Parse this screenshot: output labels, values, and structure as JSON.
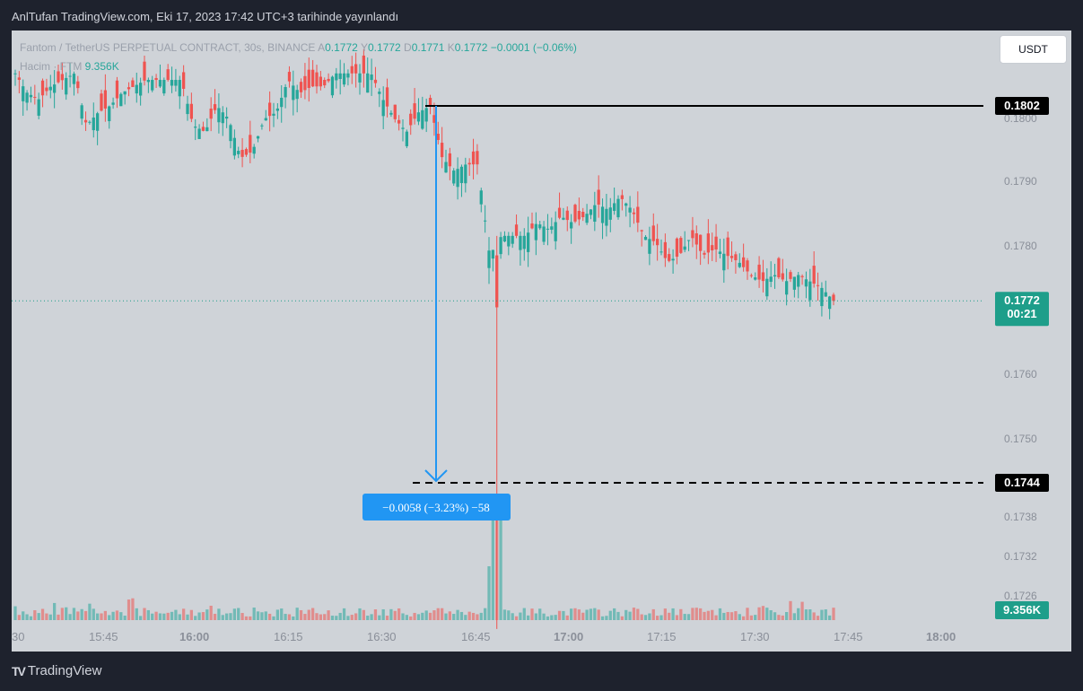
{
  "header": {
    "published": "AnlTufan TradingView.com, Eki 17, 2023 17:42 UTC+3 tarihinde yayınlandı"
  },
  "legend": {
    "symbol": "Fantom / TetherUS PERPETUAL CONTRACT, 30s, BINANCE",
    "o_label": "A",
    "o_value": "0.1772",
    "h_label": "Y",
    "h_value": "0.1772",
    "l_label": "D",
    "l_value": "0.1771",
    "c_label": "K",
    "c_value": "0.1772",
    "change": "−0.0001 (−0.06%)",
    "volume_label": "Hacim · FTM",
    "volume_value": "9.356K"
  },
  "currency_button": "USDT",
  "brand": {
    "name": "TradingView",
    "logo": "TV"
  },
  "colors": {
    "up": "#26a69a",
    "down": "#ef5350",
    "measure": "#2196f3",
    "lastPrice": "#1e9e8a",
    "black": "#000000"
  },
  "chart_data": {
    "type": "candlestick",
    "symbol": "FTMUSDT.P",
    "timeframe": "30s",
    "ylim": [
      0.17215,
      0.18125
    ],
    "y_ticks": [
      "0.1800",
      "0.1790",
      "0.1780",
      "0.1760",
      "0.1750",
      "0.1738",
      "0.1732",
      "0.1726"
    ],
    "x_ticks": [
      "30",
      "15:45",
      "16:00",
      "16:15",
      "16:30",
      "16:45",
      "17:00",
      "17:15",
      "17:30",
      "17:45",
      "18:00"
    ],
    "x_tick_bold": [
      "16:00",
      "17:00",
      "18:00"
    ],
    "price_path": [
      [
        0.1805,
        0.1807
      ],
      [
        0.1801,
        0.1804
      ],
      [
        0.1802,
        0.1803
      ],
      [
        0.1804,
        0.1805
      ],
      [
        0.1803,
        0.1806
      ],
      [
        0.18,
        0.1807
      ],
      [
        0.1798,
        0.1799
      ],
      [
        0.1797,
        0.1801
      ],
      [
        0.1799,
        0.1802
      ],
      [
        0.1803,
        0.1804
      ],
      [
        0.1806,
        0.1805
      ],
      [
        0.1805,
        0.1806
      ],
      [
        0.1803,
        0.1806
      ],
      [
        0.1807,
        0.1806
      ],
      [
        0.1798,
        0.1806
      ],
      [
        0.1797,
        0.1799
      ],
      [
        0.1801,
        0.1798
      ],
      [
        0.18,
        0.1802
      ],
      [
        0.1797,
        0.18
      ],
      [
        0.1793,
        0.1794
      ],
      [
        0.1796,
        0.1795
      ],
      [
        0.1796,
        0.18
      ],
      [
        0.1802,
        0.1801
      ],
      [
        0.1803,
        0.1806
      ],
      [
        0.1802,
        0.1804
      ],
      [
        0.1804,
        0.1805
      ],
      [
        0.1806,
        0.1805
      ],
      [
        0.1805,
        0.1807
      ],
      [
        0.1806,
        0.1807
      ],
      [
        0.1805,
        0.1807
      ],
      [
        0.1804,
        0.1807
      ],
      [
        0.1802,
        0.1803
      ],
      [
        0.1799,
        0.18
      ],
      [
        0.1799,
        0.1798
      ],
      [
        0.1802,
        0.1801
      ],
      [
        0.1798,
        0.1802
      ],
      [
        0.1789,
        0.1794
      ],
      [
        0.1793,
        0.1792
      ],
      [
        0.1791,
        0.1793
      ],
      [
        0.1787,
        0.1793
      ],
      [
        0.1776,
        0.1779
      ],
      [
        0.177,
        0.1782
      ],
      [
        0.1779,
        0.1782
      ],
      [
        0.1783,
        0.1782
      ],
      [
        0.1779,
        0.1784
      ],
      [
        0.1779,
        0.1783
      ],
      [
        0.1783,
        0.1785
      ],
      [
        0.1782,
        0.1784
      ],
      [
        0.1782,
        0.1785
      ],
      [
        0.1784,
        0.1787
      ],
      [
        0.1788,
        0.1786
      ],
      [
        0.1787,
        0.1788
      ],
      [
        0.1785,
        0.1786
      ],
      [
        0.1778,
        0.1782
      ],
      [
        0.1779,
        0.1781
      ],
      [
        0.178,
        0.1778
      ],
      [
        0.1781,
        0.1779
      ],
      [
        0.1779,
        0.1782
      ],
      [
        0.1778,
        0.1779
      ],
      [
        0.1781,
        0.178
      ],
      [
        0.1782,
        0.1779
      ],
      [
        0.178,
        0.1778
      ],
      [
        0.1775,
        0.1776
      ],
      [
        0.1776,
        0.1775
      ],
      [
        0.1774,
        0.1776
      ],
      [
        0.1776,
        0.1775
      ],
      [
        0.1773,
        0.1776
      ],
      [
        0.1777,
        0.1775
      ],
      [
        0.1776,
        0.1774
      ],
      [
        0.1773,
        0.1772
      ]
    ],
    "last_price": "0.1772",
    "countdown": "00:21",
    "volume_last": "9.356K",
    "volume_spike": 0.7,
    "measure": {
      "from_price": 0.1802,
      "to_price": 0.1744,
      "from_label": "0.1802",
      "to_label": "0.1744",
      "label": "−0.0058 (−3.23%) −58"
    }
  }
}
